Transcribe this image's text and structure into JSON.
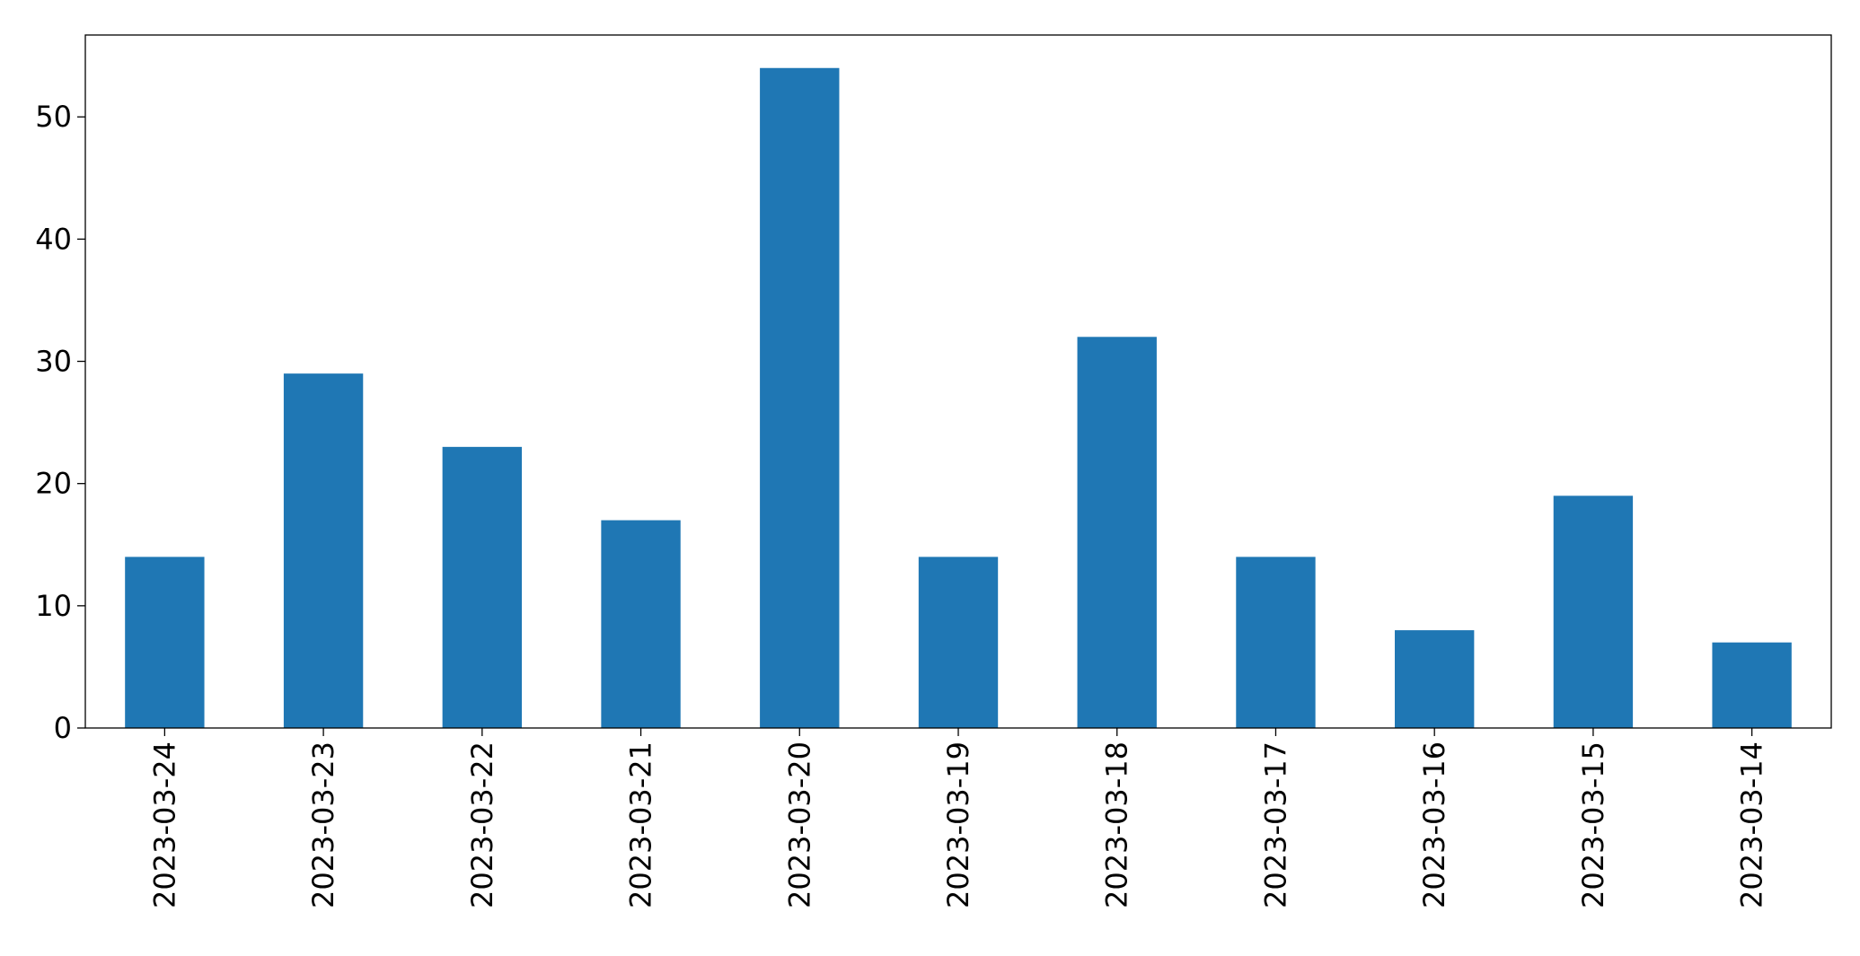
{
  "chart_data": {
    "type": "bar",
    "title": "",
    "xlabel": "",
    "ylabel": "",
    "categories": [
      "2023-03-24",
      "2023-03-23",
      "2023-03-22",
      "2023-03-21",
      "2023-03-20",
      "2023-03-19",
      "2023-03-18",
      "2023-03-17",
      "2023-03-16",
      "2023-03-15",
      "2023-03-14"
    ],
    "values": [
      14,
      29,
      23,
      17,
      54,
      14,
      32,
      14,
      8,
      19,
      7
    ],
    "ylim": [
      0,
      56.7
    ],
    "yticks": [
      0,
      10,
      20,
      30,
      40,
      50
    ],
    "grid": false,
    "legend": "none",
    "bar_color": "#1f77b4",
    "axis_color": "#000000"
  }
}
